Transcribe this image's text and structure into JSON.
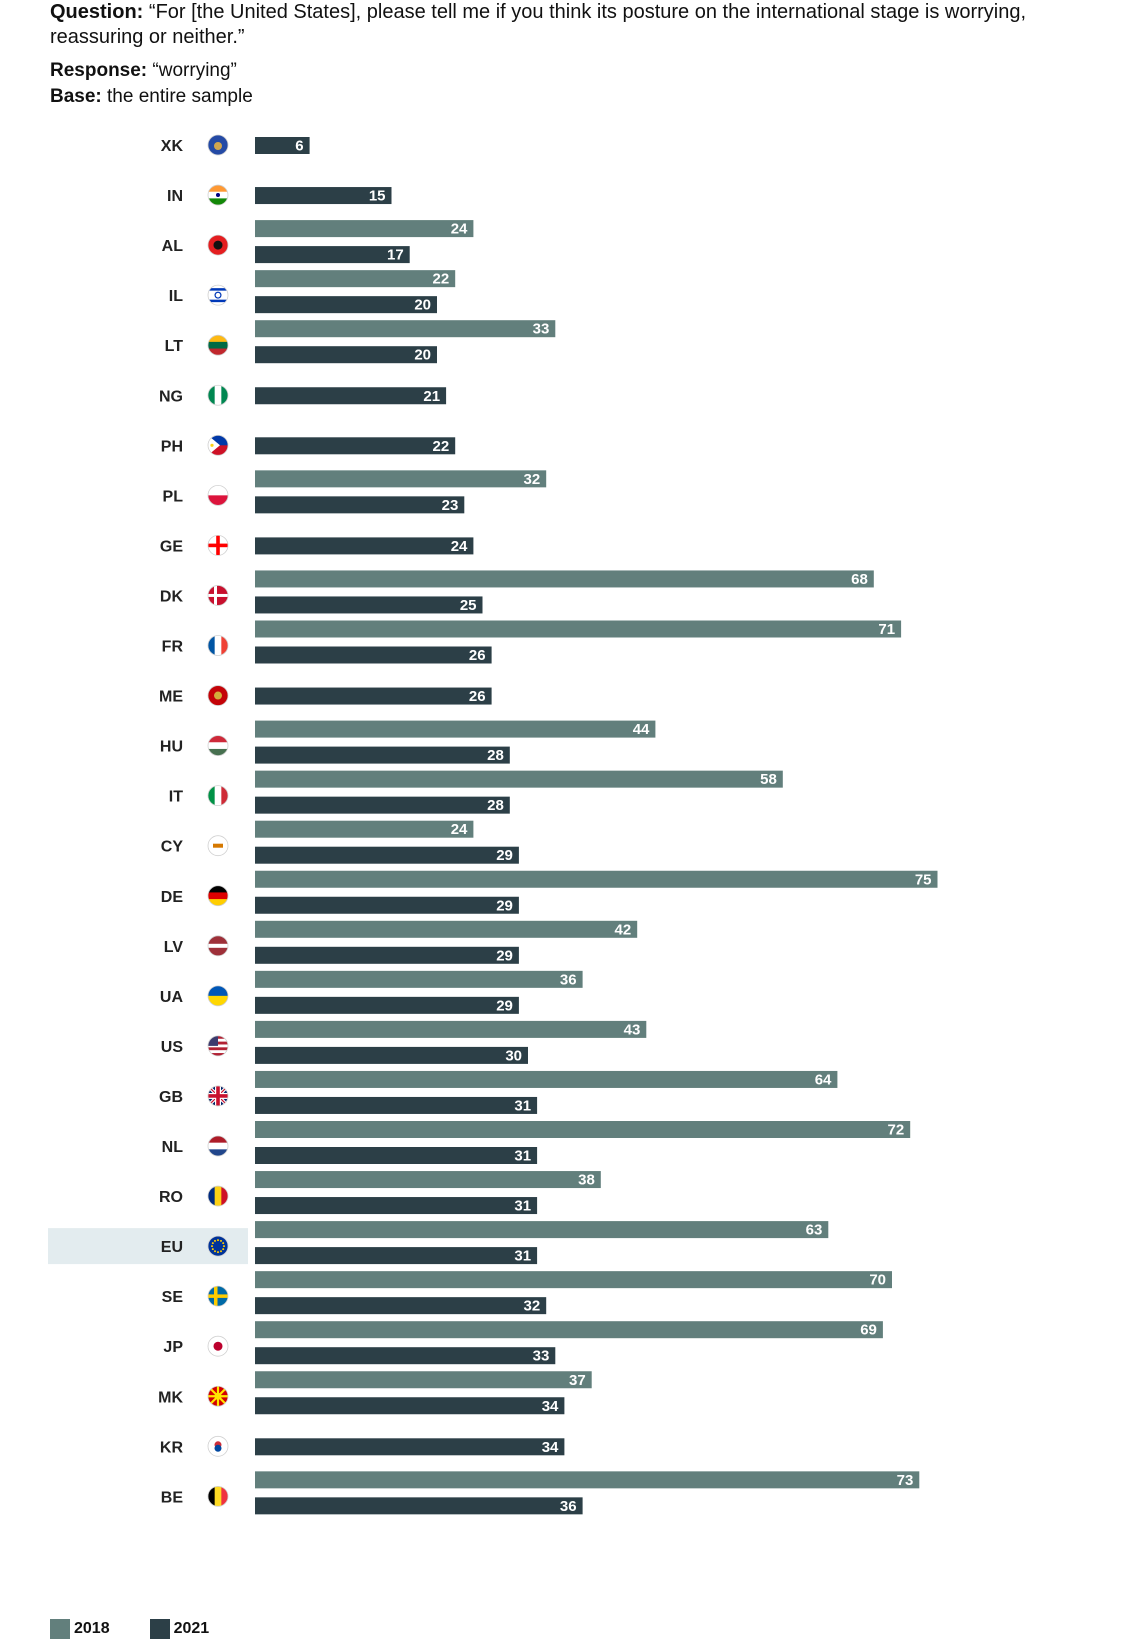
{
  "question": {
    "label": "Question:",
    "text": "“For [the United States], please tell me if you think its posture on the international stage is worrying, reassuring or neither.”"
  },
  "response": {
    "label": "Response:",
    "text": "“worrying”"
  },
  "base": {
    "label": "Base:",
    "text": "the entire sample"
  },
  "colors": {
    "series_2018": "#627f7c",
    "series_2021": "#2c3f47",
    "highlight": "#e3ecef",
    "label_text": "#ffffff"
  },
  "legend": [
    {
      "name": "2018",
      "color": "#627f7c"
    },
    {
      "name": "2021",
      "color": "#2c3f47"
    }
  ],
  "chart_data": {
    "type": "bar",
    "orientation": "horizontal",
    "grid": false,
    "legend_position": "bottom-left",
    "xlim": [
      0,
      80
    ],
    "highlighted_category": "EU",
    "categories": [
      "XK",
      "IN",
      "AL",
      "IL",
      "LT",
      "NG",
      "PH",
      "PL",
      "GE",
      "DK",
      "FR",
      "ME",
      "HU",
      "IT",
      "CY",
      "DE",
      "LV",
      "UA",
      "US",
      "GB",
      "NL",
      "RO",
      "EU",
      "SE",
      "JP",
      "MK",
      "KR",
      "BE"
    ],
    "flag_icons": [
      "flag-xk-icon",
      "flag-in-icon",
      "flag-al-icon",
      "flag-il-icon",
      "flag-lt-icon",
      "flag-ng-icon",
      "flag-ph-icon",
      "flag-pl-icon",
      "flag-ge-icon",
      "flag-dk-icon",
      "flag-fr-icon",
      "flag-me-icon",
      "flag-hu-icon",
      "flag-it-icon",
      "flag-cy-icon",
      "flag-de-icon",
      "flag-lv-icon",
      "flag-ua-icon",
      "flag-us-icon",
      "flag-gb-icon",
      "flag-nl-icon",
      "flag-ro-icon",
      "flag-eu-icon",
      "flag-se-icon",
      "flag-jp-icon",
      "flag-mk-icon",
      "flag-kr-icon",
      "flag-be-icon"
    ],
    "series": [
      {
        "name": "2018",
        "values": [
          null,
          null,
          24,
          22,
          33,
          null,
          null,
          32,
          null,
          68,
          71,
          null,
          44,
          58,
          24,
          75,
          42,
          36,
          43,
          64,
          72,
          38,
          63,
          70,
          69,
          37,
          null,
          73
        ]
      },
      {
        "name": "2021",
        "values": [
          6,
          15,
          17,
          20,
          20,
          21,
          22,
          23,
          24,
          25,
          26,
          26,
          28,
          28,
          29,
          29,
          29,
          29,
          30,
          31,
          31,
          31,
          31,
          32,
          33,
          34,
          34,
          36
        ]
      }
    ]
  }
}
